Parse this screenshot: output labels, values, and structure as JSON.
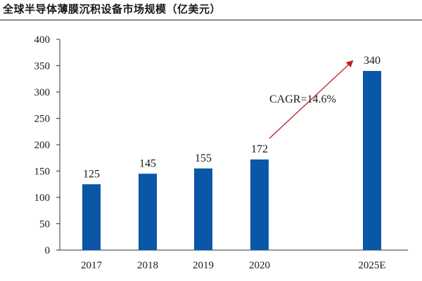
{
  "title": "全球半导体薄膜沉积设备市场规模（亿美元）",
  "chart_data": {
    "type": "bar",
    "title": "全球半导体薄膜沉积设备市场规模（亿美元）",
    "categories": [
      "2017",
      "2018",
      "2019",
      "2020",
      "2025E"
    ],
    "values": [
      125,
      145,
      155,
      172,
      340
    ],
    "data_labels": [
      "125",
      "145",
      "155",
      "172",
      "340"
    ],
    "ylim": [
      0,
      400
    ],
    "yticks": [
      0,
      50,
      100,
      150,
      200,
      250,
      300,
      350,
      400
    ],
    "xlabel": "",
    "ylabel": "",
    "grid": false,
    "bar_color": "#0a57a8",
    "annotation": {
      "text": "CAGR=14.6%",
      "arrow_color": "#c0202a",
      "from_category": "2020",
      "to_category": "2025E"
    }
  }
}
